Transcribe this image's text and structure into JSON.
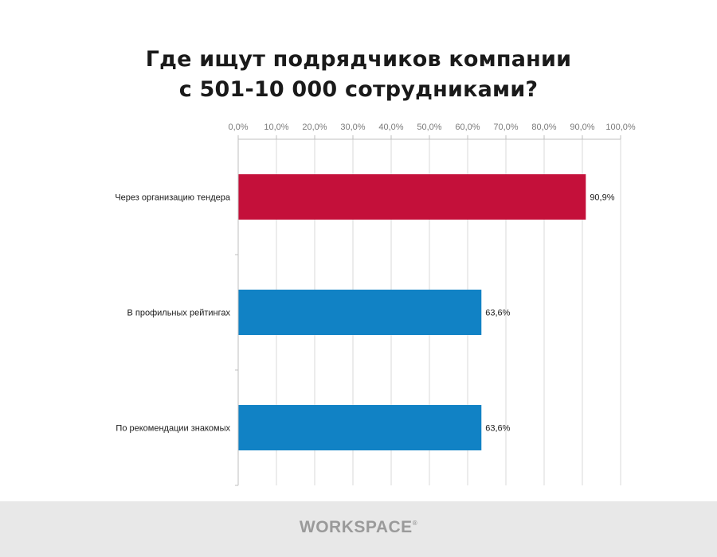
{
  "title": {
    "line1": "Где ищут подрядчиков компании",
    "line2": "с 501-10 000 сотрудниками?"
  },
  "footer": {
    "brand": "WORKSPACE",
    "trademark": "®"
  },
  "chart_data": {
    "type": "bar",
    "orientation": "horizontal",
    "categories": [
      "Через организацию тендера",
      "В профильных рейтингах",
      "По рекомендации знакомых"
    ],
    "values": [
      90.9,
      63.6,
      63.6
    ],
    "value_labels": [
      "90,9%",
      "63,6%",
      "63,6%"
    ],
    "bar_colors": [
      "#c4103a",
      "#1182c5",
      "#1182c5"
    ],
    "xlim": [
      0,
      100
    ],
    "x_ticks": [
      0,
      10,
      20,
      30,
      40,
      50,
      60,
      70,
      80,
      90,
      100
    ],
    "x_tick_labels": [
      "0,0%",
      "10,0%",
      "20,0%",
      "30,0%",
      "40,0%",
      "50,0%",
      "60,0%",
      "70,0%",
      "80,0%",
      "90,0%",
      "100,0%"
    ],
    "x_axis_position": "top",
    "grid": true,
    "legend": "none",
    "xlabel": "",
    "ylabel": ""
  }
}
